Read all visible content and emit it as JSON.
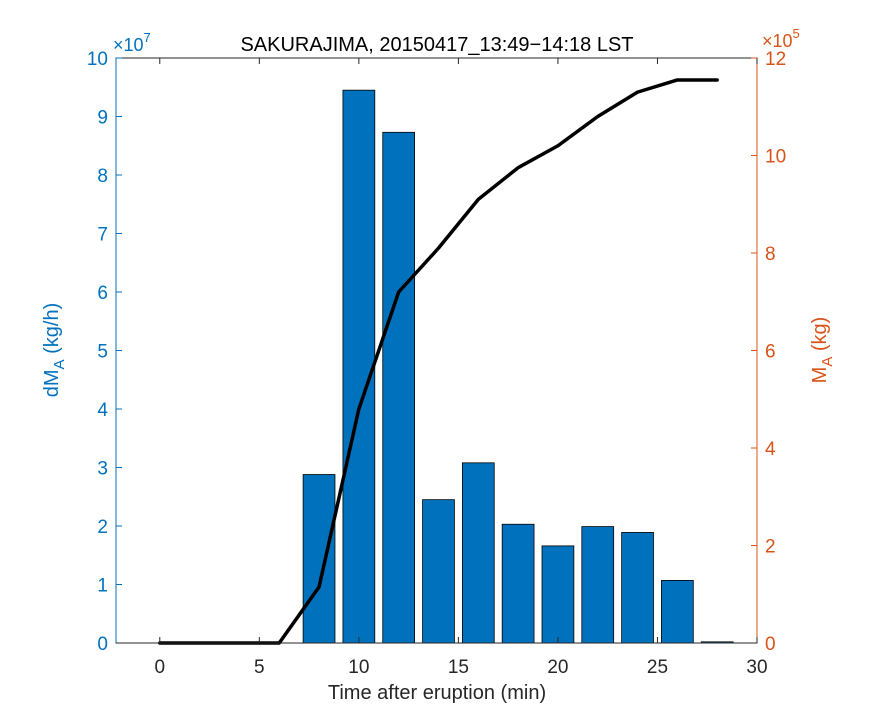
{
  "chart_data": {
    "type": "bar",
    "title": "SAKURAJIMA, 20150417_13:49−14:18 LST",
    "xlabel": "Time after eruption (min)",
    "xlim": [
      -2.2,
      30
    ],
    "xticks": [
      0,
      5,
      10,
      15,
      20,
      25,
      30
    ],
    "left_axis": {
      "label_main": "dM",
      "label_sub": "A",
      "label_unit": " (kg/h)",
      "exponent_base": "×10",
      "exponent": "7",
      "ylim": [
        0,
        10
      ],
      "ticks": [
        0,
        1,
        2,
        3,
        4,
        5,
        6,
        7,
        8,
        9,
        10
      ],
      "color": "#0072BD"
    },
    "right_axis": {
      "label_main": "M",
      "label_sub": "A",
      "label_unit": " (kg)",
      "exponent_base": "×10",
      "exponent": "5",
      "ylim": [
        0,
        12
      ],
      "ticks": [
        0,
        2,
        4,
        6,
        8,
        10,
        12
      ],
      "color": "#D95319"
    },
    "bars": {
      "axis": "left",
      "color": "#0072BD",
      "x": [
        0,
        2,
        4,
        6,
        8,
        10,
        12,
        14,
        16,
        18,
        20,
        22,
        24,
        26,
        28
      ],
      "values": [
        0,
        0,
        0,
        0,
        2.88,
        9.45,
        8.73,
        2.45,
        3.08,
        2.03,
        1.66,
        1.99,
        1.89,
        1.07,
        0.02
      ]
    },
    "series": [
      {
        "axis": "right",
        "color": "#000000",
        "x": [
          0,
          2,
          4,
          6,
          8,
          10,
          12,
          14,
          16,
          18,
          20,
          22,
          24,
          26,
          28
        ],
        "values": [
          0,
          0,
          0,
          0,
          1.15,
          4.8,
          7.2,
          8.1,
          9.1,
          9.75,
          10.2,
          10.8,
          11.3,
          11.55,
          11.55
        ]
      }
    ]
  }
}
